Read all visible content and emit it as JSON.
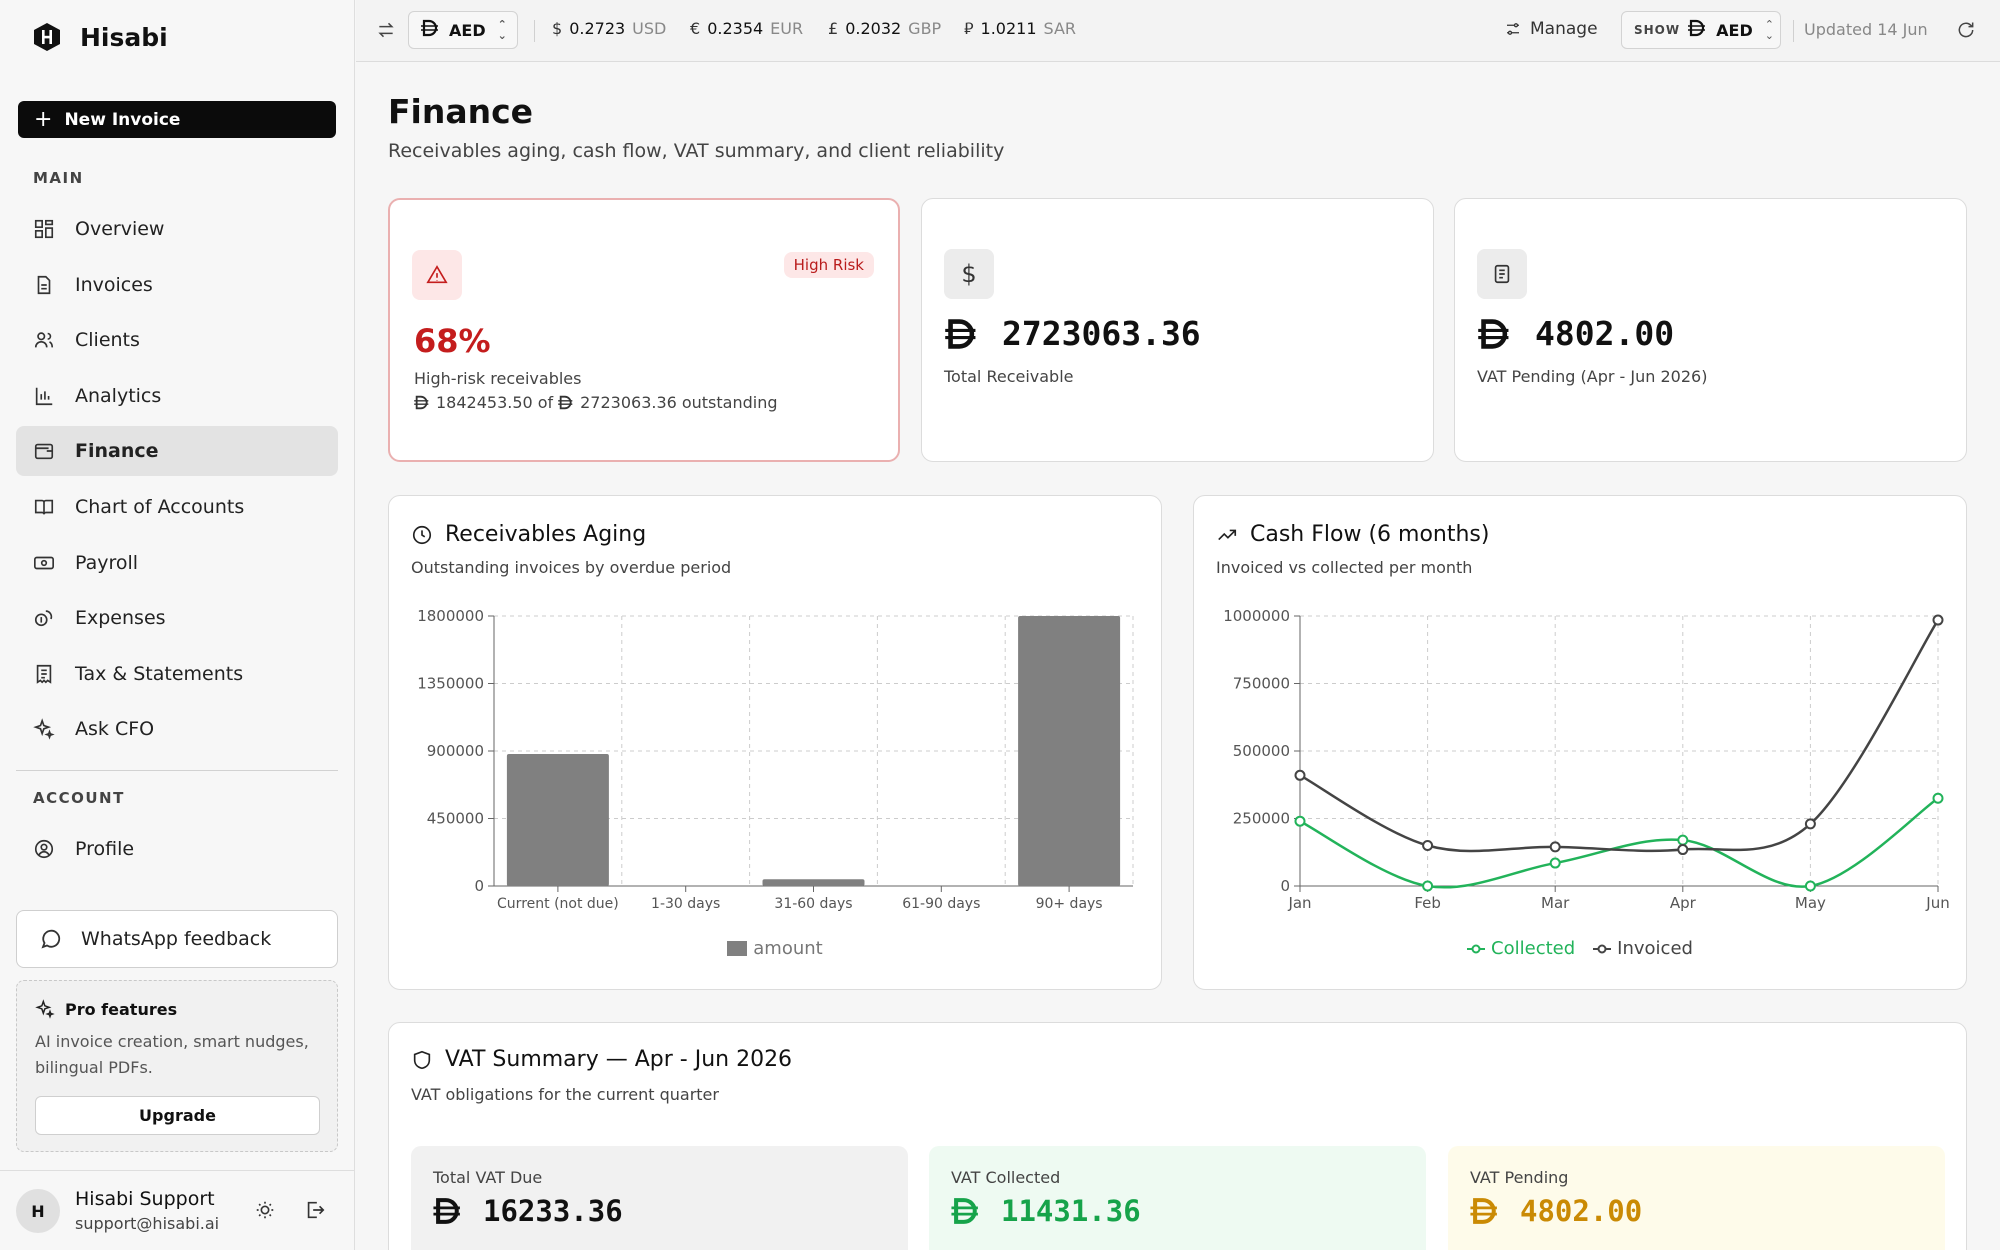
{
  "app": {
    "name": "Hisabi"
  },
  "sidebar": {
    "new_invoice_label": "New Invoice",
    "main_label": "MAIN",
    "items": [
      {
        "label": "Overview",
        "icon": "grid-icon"
      },
      {
        "label": "Invoices",
        "icon": "file-icon"
      },
      {
        "label": "Clients",
        "icon": "users-icon"
      },
      {
        "label": "Analytics",
        "icon": "bar-chart-icon"
      },
      {
        "label": "Finance",
        "icon": "wallet-icon",
        "active": true
      },
      {
        "label": "Chart of Accounts",
        "icon": "book-icon"
      },
      {
        "label": "Payroll",
        "icon": "banknote-icon"
      },
      {
        "label": "Expenses",
        "icon": "coins-icon"
      },
      {
        "label": "Tax & Statements",
        "icon": "receipt-icon"
      },
      {
        "label": "Ask CFO",
        "icon": "sparkles-icon"
      }
    ],
    "account_label": "ACCOUNT",
    "account_items": [
      {
        "label": "Profile",
        "icon": "user-circle-icon"
      }
    ],
    "whatsapp_label": "WhatsApp feedback",
    "pro": {
      "title": "Pro features",
      "desc": "AI invoice creation, smart nudges, bilingual PDFs.",
      "upgrade_label": "Upgrade"
    },
    "user": {
      "initial": "H",
      "name": "Hisabi Support",
      "email": "support@hisabi.ai"
    }
  },
  "topbar": {
    "base_currency": "AED",
    "rates": [
      {
        "symbol": "$",
        "value": "0.2723",
        "code": "USD"
      },
      {
        "symbol": "€",
        "value": "0.2354",
        "code": "EUR"
      },
      {
        "symbol": "£",
        "value": "0.2032",
        "code": "GBP"
      },
      {
        "symbol": "⃁",
        "value": "1.0211",
        "code": "SAR"
      }
    ],
    "manage_label": "Manage",
    "show_label": "SHOW",
    "show_currency": "AED",
    "updated": "Updated 14 Jun"
  },
  "page": {
    "title": "Finance",
    "subtitle": "Receivables aging, cash flow, VAT summary, and client reliability"
  },
  "kpis": {
    "risk": {
      "badge": "High Risk",
      "percent": "68%",
      "label": "High-risk receivables",
      "high_risk_amount": "1842453.50",
      "of_text": "of",
      "outstanding_amount": "2723063.36",
      "outstanding_text": "outstanding"
    },
    "total_receivable": {
      "value": "2723063.36",
      "label": "Total Receivable"
    },
    "vat_pending": {
      "value": "4802.00",
      "label": "VAT Pending (Apr - Jun 2026)"
    }
  },
  "aging": {
    "title": "Receivables Aging",
    "subtitle": "Outstanding invoices by overdue period"
  },
  "cashflow": {
    "title": "Cash Flow (6 months)",
    "subtitle": "Invoiced vs collected per month"
  },
  "chart_data": [
    {
      "type": "bar",
      "categories": [
        "Current (not due)",
        "1-30 days",
        "31-60 days",
        "61-90 days",
        "90+ days"
      ],
      "series": [
        {
          "name": "amount",
          "values": [
            880000,
            0,
            45000,
            0,
            1800000
          ],
          "color": "#808080"
        }
      ],
      "yticks": [
        "0",
        "450000",
        "900000",
        "1350000",
        "1800000"
      ],
      "ylim": [
        0,
        1800000
      ],
      "grid": true,
      "legend": "bottom"
    },
    {
      "type": "line",
      "categories": [
        "Jan",
        "Feb",
        "Mar",
        "Apr",
        "May",
        "Jun"
      ],
      "series": [
        {
          "name": "Collected",
          "values": [
            240000,
            0,
            85000,
            170000,
            0,
            325000
          ],
          "color": "#22b35a"
        },
        {
          "name": "Invoiced",
          "values": [
            410000,
            150000,
            145000,
            135000,
            230000,
            985000
          ],
          "color": "#444444"
        }
      ],
      "yticks": [
        "0",
        "250000",
        "500000",
        "750000",
        "1000000"
      ],
      "ylim": [
        0,
        1000000
      ],
      "grid": true,
      "legend": "bottom"
    }
  ],
  "vat": {
    "title": "VAT Summary — Apr - Jun 2026",
    "subtitle": "VAT obligations for the current quarter",
    "total_label": "Total VAT Due",
    "total_value": "16233.36",
    "collected_label": "VAT Collected",
    "collected_value": "11431.36",
    "pending_label": "VAT Pending",
    "pending_value": "4802.00",
    "colors": {
      "collected": "#16a34a",
      "pending": "#ca8a04"
    }
  }
}
